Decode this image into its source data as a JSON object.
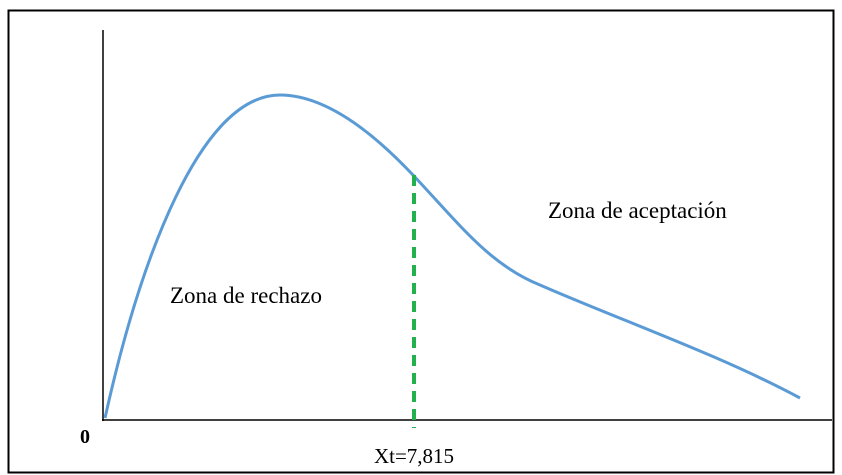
{
  "labels": {
    "origin": "0",
    "critical_value": "Xt=7,815",
    "rejection_zone": "Zona de rechazo",
    "acceptance_zone": "Zona de aceptación"
  }
}
